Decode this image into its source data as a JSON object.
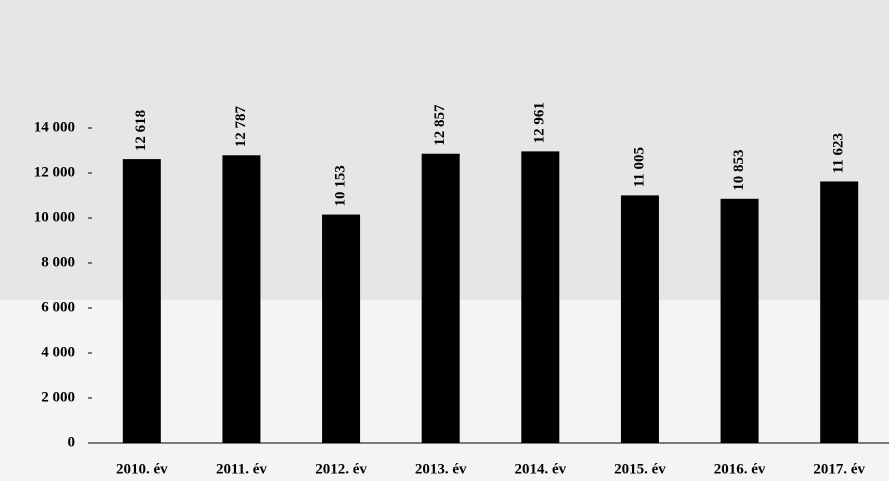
{
  "chart_data": {
    "type": "bar",
    "categories": [
      "2010. év",
      "2011. év",
      "2012. év",
      "2013. év",
      "2014. év",
      "2015. év",
      "2016. év",
      "2017. év"
    ],
    "values": [
      12618,
      12787,
      10153,
      12857,
      12961,
      11005,
      10853,
      11623
    ],
    "value_labels": [
      "12 618",
      "12 787",
      "10 153",
      "12 857",
      "12 961",
      "11 005",
      "10 853",
      "11 623"
    ],
    "color": "#000000",
    "ylim": [
      0,
      14000
    ],
    "yticks": [
      0,
      {
        "value": 2000,
        "label": "2 000"
      },
      {
        "value": 4000,
        "label": "4 000"
      },
      {
        "value": 6000,
        "label": "6 000"
      },
      {
        "value": 8000,
        "label": "8 000"
      },
      {
        "value": 10000,
        "label": "10 000"
      },
      {
        "value": 12000,
        "label": "12 000"
      },
      {
        "value": 14000,
        "label": "14 000"
      }
    ],
    "grid": false
  }
}
